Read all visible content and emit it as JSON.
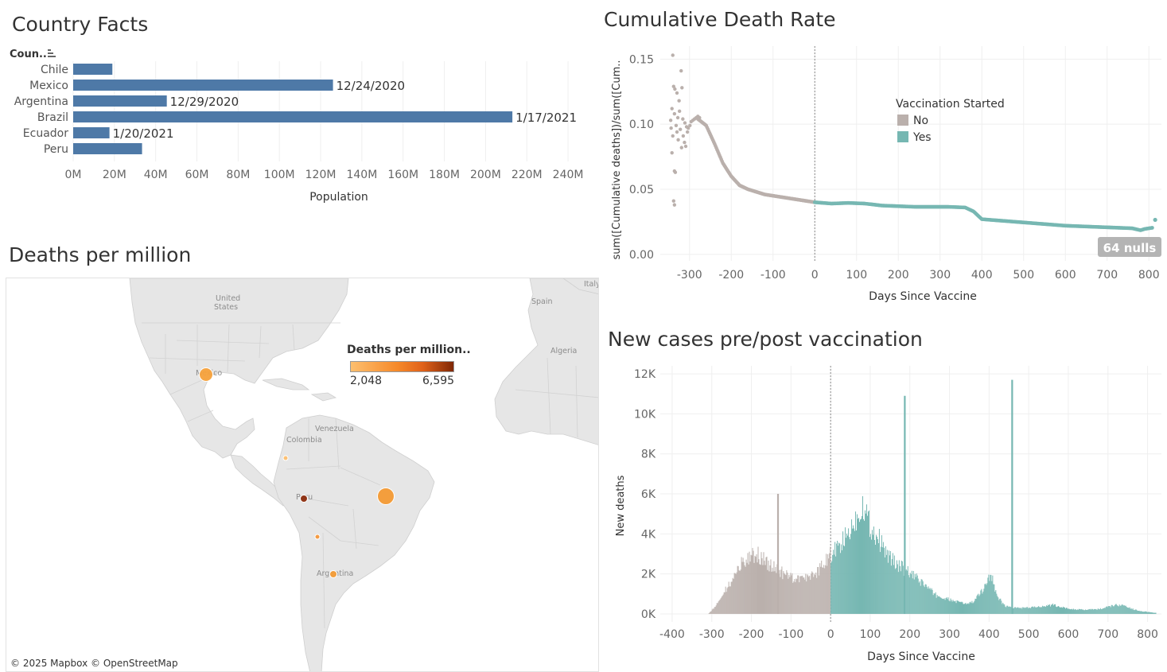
{
  "colors": {
    "bar": "#4e79a7",
    "no": "#bab0ac",
    "yes": "#76b7b2",
    "map_land": "#e8e8e8",
    "map_water": "#ffffff",
    "grid": "#efefef",
    "text": "#333333",
    "nulls_badge": "#b4b4b4",
    "deaths_low": "#fdbf6f",
    "deaths_mid": "#f07f1e",
    "deaths_high": "#a63603"
  },
  "sections": {
    "country_facts": "Country Facts",
    "cumulative": "Cumulative Death Rate",
    "deaths_map": "Deaths per million",
    "new_cases": "New cases pre/post vaccination"
  },
  "chart_data": [
    {
      "id": "country_facts",
      "type": "bar",
      "orientation": "horizontal",
      "row_header": "Coun..",
      "sort_icon": "sort-descending-icon",
      "categories": [
        "Chile",
        "Mexico",
        "Argentina",
        "Brazil",
        "Ecuador",
        "Peru"
      ],
      "values": [
        19000000,
        126000000,
        45400000,
        213000000,
        17600000,
        33400000
      ],
      "labels": [
        "",
        "12/24/2020",
        "12/29/2020",
        "1/17/2021",
        "1/20/2021",
        ""
      ],
      "xlabel": "Population",
      "xlim": [
        0,
        250000000
      ],
      "ticks": [
        0,
        20000000,
        40000000,
        60000000,
        80000000,
        100000000,
        120000000,
        140000000,
        160000000,
        180000000,
        200000000,
        220000000,
        240000000
      ],
      "tick_labels": [
        "0M",
        "20M",
        "40M",
        "60M",
        "80M",
        "100M",
        "120M",
        "140M",
        "160M",
        "180M",
        "200M",
        "220M",
        "240M"
      ]
    },
    {
      "id": "cumulative",
      "type": "scatter",
      "xlabel": "Days Since Vaccine",
      "ylabel": "sum([Cumulative deaths])/sum([Cum..",
      "xlim": [
        -370,
        830
      ],
      "ylim": [
        -0.005,
        0.16
      ],
      "x_ticks": [
        -300,
        -200,
        -100,
        0,
        100,
        200,
        300,
        400,
        500,
        600,
        700,
        800
      ],
      "x_tick_labels": [
        "-300",
        "-200",
        "-100",
        "0",
        "100",
        "200",
        "300",
        "400",
        "500",
        "600",
        "700",
        "800"
      ],
      "y_ticks": [
        0,
        0.05,
        0.1,
        0.15
      ],
      "y_tick_labels": [
        "0.00",
        "0.05",
        "0.10",
        "0.15"
      ],
      "reference_line_x": 0,
      "legend": {
        "title": "Vaccination Started",
        "items": [
          "No",
          "Yes"
        ],
        "position": "top-right"
      },
      "nulls_badge": "64 nulls",
      "scatter_points": [
        [
          -340,
          0.153
        ],
        [
          -335,
          0.127
        ],
        [
          -330,
          0.124
        ],
        [
          -325,
          0.118
        ],
        [
          -320,
          0.141
        ],
        [
          -318,
          0.128
        ],
        [
          -338,
          0.129
        ],
        [
          -342,
          0.112
        ],
        [
          -345,
          0.103
        ],
        [
          -336,
          0.108
        ],
        [
          -332,
          0.099
        ],
        [
          -328,
          0.105
        ],
        [
          -322,
          0.096
        ],
        [
          -315,
          0.091
        ],
        [
          -312,
          0.086
        ],
        [
          -309,
          0.083
        ],
        [
          -305,
          0.094
        ],
        [
          -340,
          0.091
        ],
        [
          -336,
          0.064
        ],
        [
          -334,
          0.063
        ],
        [
          -338,
          0.041
        ],
        [
          -336,
          0.038
        ],
        [
          -342,
          0.078
        ],
        [
          -344,
          0.097
        ],
        [
          -327,
          0.088
        ],
        [
          -319,
          0.082
        ],
        [
          -311,
          0.101
        ],
        [
          -307,
          0.098
        ],
        [
          -303,
          0.097
        ],
        [
          -299,
          0.099
        ],
        [
          -296,
          0.102
        ],
        [
          -292,
          0.103
        ],
        [
          -288,
          0.104
        ],
        [
          -284,
          0.105
        ],
        [
          -280,
          0.106
        ],
        [
          -276,
          0.105
        ],
        [
          -330,
          0.094
        ],
        [
          -324,
          0.11
        ],
        [
          -316,
          0.104
        ]
      ],
      "series": [
        {
          "name": "No",
          "points": [
            [
              -280,
              0.104
            ],
            [
              -260,
              0.099
            ],
            [
              -240,
              0.085
            ],
            [
              -220,
              0.07
            ],
            [
              -200,
              0.06
            ],
            [
              -180,
              0.053
            ],
            [
              -160,
              0.05
            ],
            [
              -140,
              0.048
            ],
            [
              -120,
              0.046
            ],
            [
              -100,
              0.045
            ],
            [
              -80,
              0.044
            ],
            [
              -60,
              0.043
            ],
            [
              -40,
              0.042
            ],
            [
              -20,
              0.041
            ],
            [
              0,
              0.04
            ]
          ]
        },
        {
          "name": "Yes",
          "points": [
            [
              0,
              0.04
            ],
            [
              40,
              0.039
            ],
            [
              80,
              0.0395
            ],
            [
              120,
              0.039
            ],
            [
              160,
              0.0375
            ],
            [
              200,
              0.037
            ],
            [
              240,
              0.0365
            ],
            [
              280,
              0.0365
            ],
            [
              320,
              0.0365
            ],
            [
              360,
              0.036
            ],
            [
              380,
              0.033
            ],
            [
              400,
              0.027
            ],
            [
              440,
              0.026
            ],
            [
              480,
              0.025
            ],
            [
              520,
              0.024
            ],
            [
              560,
              0.023
            ],
            [
              600,
              0.022
            ],
            [
              640,
              0.0215
            ],
            [
              680,
              0.021
            ],
            [
              720,
              0.0205
            ],
            [
              760,
              0.02
            ],
            [
              780,
              0.0185
            ],
            [
              790,
              0.0195
            ],
            [
              800,
              0.02
            ],
            [
              810,
              0.0205
            ]
          ]
        }
      ],
      "outliers": [
        [
          815,
          0.0265
        ]
      ]
    },
    {
      "id": "new_cases",
      "type": "bar",
      "xlabel": "Days Since Vaccine",
      "ylabel": "New deaths",
      "xlim": [
        -430,
        835
      ],
      "ylim": [
        -400,
        12400
      ],
      "x_ticks": [
        -400,
        -300,
        -200,
        -100,
        0,
        100,
        200,
        300,
        400,
        500,
        600,
        700,
        800
      ],
      "x_tick_labels": [
        "-400",
        "-300",
        "-200",
        "-100",
        "0",
        "100",
        "200",
        "300",
        "400",
        "500",
        "600",
        "700",
        "800"
      ],
      "y_ticks": [
        0,
        2000,
        4000,
        6000,
        8000,
        10000,
        12000
      ],
      "y_tick_labels": [
        "0K",
        "2K",
        "4K",
        "6K",
        "8K",
        "10K",
        "12K"
      ],
      "reference_line_x": 0,
      "series_colors": {
        "No": "#bab0ac",
        "Yes": "#76b7b2"
      },
      "envelope": [
        [
          -310,
          0
        ],
        [
          -300,
          200
        ],
        [
          -280,
          700
        ],
        [
          -260,
          1400
        ],
        [
          -240,
          2100
        ],
        [
          -220,
          2700
        ],
        [
          -200,
          3000
        ],
        [
          -180,
          2900
        ],
        [
          -160,
          2500
        ],
        [
          -140,
          2300
        ],
        [
          -120,
          2000
        ],
        [
          -100,
          1800
        ],
        [
          -80,
          1700
        ],
        [
          -60,
          1800
        ],
        [
          -40,
          2000
        ],
        [
          -20,
          2500
        ],
        [
          -10,
          2800
        ],
        [
          0,
          3000
        ],
        [
          20,
          3300
        ],
        [
          40,
          3900
        ],
        [
          60,
          4600
        ],
        [
          70,
          5000
        ],
        [
          80,
          5500
        ],
        [
          90,
          5000
        ],
        [
          100,
          4300
        ],
        [
          120,
          3800
        ],
        [
          140,
          3000
        ],
        [
          160,
          2600
        ],
        [
          180,
          2300
        ],
        [
          200,
          2000
        ],
        [
          220,
          1700
        ],
        [
          240,
          1400
        ],
        [
          260,
          1000
        ],
        [
          280,
          800
        ],
        [
          300,
          700
        ],
        [
          320,
          600
        ],
        [
          340,
          500
        ],
        [
          360,
          600
        ],
        [
          380,
          1100
        ],
        [
          395,
          1700
        ],
        [
          405,
          2000
        ],
        [
          415,
          1100
        ],
        [
          430,
          600
        ],
        [
          440,
          400
        ],
        [
          460,
          300
        ],
        [
          500,
          300
        ],
        [
          540,
          400
        ],
        [
          560,
          450
        ],
        [
          580,
          350
        ],
        [
          600,
          250
        ],
        [
          640,
          200
        ],
        [
          680,
          250
        ],
        [
          700,
          350
        ],
        [
          720,
          450
        ],
        [
          740,
          400
        ],
        [
          760,
          250
        ],
        [
          780,
          150
        ],
        [
          800,
          100
        ],
        [
          820,
          50
        ]
      ],
      "spikes": [
        [
          -135,
          6000
        ],
        [
          185,
          10900
        ],
        [
          456,
          11700
        ]
      ]
    }
  ],
  "map": {
    "legend_title": "Deaths per million..",
    "legend_min": "2,048",
    "legend_max": "6,595",
    "attribution": "© 2025 Mapbox © OpenStreetMap",
    "labels": [
      "United States",
      "Mexico",
      "Colombia",
      "Venezuela",
      "Peru",
      "Argentina",
      "Spain",
      "Algeria",
      "Italy"
    ],
    "markers": [
      {
        "country": "Mexico",
        "deaths_per_million": 2600,
        "color": "#f7a23c"
      },
      {
        "country": "Brazil",
        "deaths_per_million": 3200,
        "color": "#f39a34"
      },
      {
        "country": "Peru",
        "deaths_per_million": 6595,
        "color": "#8c2d0e"
      },
      {
        "country": "Argentina",
        "deaths_per_million": 2850,
        "color": "#f39b35"
      },
      {
        "country": "Ecuador",
        "deaths_per_million": 2048,
        "color": "#fdbf6f"
      },
      {
        "country": "Chile",
        "deaths_per_million": 3250,
        "color": "#f4973a"
      }
    ]
  }
}
